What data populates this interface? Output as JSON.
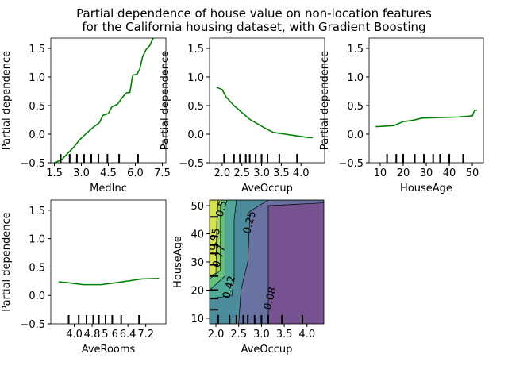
{
  "title_line1": "Partial dependence of house value on non-location features",
  "title_line2": "for the California housing dataset, with Gradient Boosting",
  "chart_data": [
    {
      "type": "line",
      "xlabel": "MedInc",
      "ylabel": "Partial dependence",
      "xlim": [
        1.3,
        7.7
      ],
      "ylim": [
        -0.5,
        1.68
      ],
      "xticks": [
        1.5,
        3.0,
        4.5,
        6.0,
        7.5
      ],
      "xtick_labels": [
        "1.5",
        "3.0",
        "4.5",
        "6.0",
        "7.5"
      ],
      "yticks": [
        -0.5,
        0.0,
        0.5,
        1.0,
        1.5
      ],
      "ytick_labels": [
        "−0.5",
        "0.0",
        "0.5",
        "1.0",
        "1.5"
      ],
      "deciles": [
        1.85,
        2.35,
        2.75,
        3.15,
        3.55,
        3.95,
        4.45,
        5.1,
        6.15
      ],
      "color": "#008000",
      "x": [
        1.5,
        1.9,
        2.2,
        2.6,
        2.9,
        3.3,
        3.7,
        4.0,
        4.2,
        4.5,
        4.7,
        5.0,
        5.3,
        5.5,
        5.7,
        5.85,
        6.1,
        6.25,
        6.4,
        6.6,
        6.8,
        7.0
      ],
      "y": [
        -0.5,
        -0.45,
        -0.35,
        -0.22,
        -0.1,
        0.02,
        0.13,
        0.2,
        0.33,
        0.36,
        0.48,
        0.52,
        0.65,
        0.72,
        0.73,
        1.03,
        1.05,
        1.14,
        1.35,
        1.48,
        1.55,
        1.68
      ]
    },
    {
      "type": "line",
      "xlabel": "AveOccup",
      "ylabel": "Partial dependence",
      "xlim": [
        1.68,
        4.6
      ],
      "ylim": [
        -0.5,
        1.68
      ],
      "xticks": [
        2.0,
        2.5,
        3.0,
        3.5,
        4.0
      ],
      "xtick_labels": [
        "2.0",
        "2.5",
        "3.0",
        "3.5",
        "4.0"
      ],
      "yticks": [
        -0.5,
        0.0,
        0.5,
        1.0,
        1.5
      ],
      "ytick_labels": [
        "−0.5",
        "0.0",
        "0.5",
        "1.0",
        "1.5"
      ],
      "deciles": [
        2.05,
        2.3,
        2.45,
        2.6,
        2.7,
        2.85,
        3.0,
        3.15,
        3.45,
        3.9
      ],
      "color": "#008000",
      "x": [
        1.86,
        2.0,
        2.1,
        2.3,
        2.5,
        2.7,
        2.9,
        3.1,
        3.3,
        3.6,
        3.9,
        4.2,
        4.3
      ],
      "y": [
        0.82,
        0.78,
        0.65,
        0.5,
        0.38,
        0.26,
        0.18,
        0.1,
        0.03,
        0.0,
        -0.03,
        -0.06,
        -0.06
      ]
    },
    {
      "type": "line",
      "xlabel": "HouseAge",
      "ylabel": "Partial dependence",
      "xlim": [
        5.2,
        54.8
      ],
      "ylim": [
        -0.5,
        1.68
      ],
      "xticks": [
        10,
        20,
        30,
        40,
        50
      ],
      "xtick_labels": [
        "10",
        "20",
        "30",
        "40",
        "50"
      ],
      "yticks": [
        -0.5,
        0.0,
        0.5,
        1.0,
        1.5
      ],
      "ytick_labels": [
        "−0.5",
        "0.0",
        "0.5",
        "1.0",
        "1.5"
      ],
      "deciles": [
        13,
        17,
        20,
        25,
        29,
        33,
        36,
        40,
        46
      ],
      "color": "#008000",
      "x": [
        8,
        12,
        16,
        20,
        24,
        28,
        36,
        44,
        50,
        51,
        52
      ],
      "y": [
        0.13,
        0.14,
        0.15,
        0.22,
        0.24,
        0.28,
        0.29,
        0.3,
        0.32,
        0.42,
        0.42
      ]
    },
    {
      "type": "line",
      "xlabel": "AveRooms",
      "ylabel": "Partial dependence",
      "xlim": [
        2.95,
        8.1
      ],
      "ylim": [
        -0.5,
        1.68
      ],
      "xticks": [
        4.0,
        4.8,
        5.6,
        6.4,
        7.2
      ],
      "xtick_labels": [
        "4.0",
        "4.8",
        "5.6",
        "6.4",
        "7.2"
      ],
      "yticks": [
        -0.5,
        0.0,
        0.5,
        1.0,
        1.5
      ],
      "ytick_labels": [
        "−0.5",
        "0.0",
        "0.5",
        "1.0",
        "1.5"
      ],
      "deciles": [
        3.75,
        4.2,
        4.55,
        4.85,
        5.1,
        5.4,
        5.7,
        6.1,
        6.9
      ],
      "color": "#008000",
      "x": [
        3.3,
        3.8,
        4.4,
        5.2,
        5.8,
        6.5,
        7.0,
        7.8
      ],
      "y": [
        0.24,
        0.22,
        0.19,
        0.19,
        0.22,
        0.26,
        0.29,
        0.3
      ]
    },
    {
      "type": "heatmap",
      "xlabel": "AveOccup",
      "ylabel": "HouseAge",
      "xlim": [
        1.86,
        4.37
      ],
      "ylim": [
        8,
        52
      ],
      "xticks": [
        2.0,
        2.5,
        3.0,
        3.5,
        4.0
      ],
      "xtick_labels": [
        "2.0",
        "2.5",
        "3.0",
        "3.5",
        "4.0"
      ],
      "yticks": [
        10,
        20,
        30,
        40,
        50
      ],
      "ytick_labels": [
        "10",
        "20",
        "30",
        "40",
        "50"
      ],
      "xdeciles": [
        2.05,
        2.3,
        2.45,
        2.6,
        2.7,
        2.85,
        3.0,
        3.15,
        3.45,
        3.9
      ],
      "ydeciles": [
        13,
        17,
        20,
        25,
        29,
        33,
        36,
        39,
        46
      ],
      "base_color": "#765290",
      "levels": [
        {
          "label": "0.08",
          "color": "#6a72a2",
          "poly": [
            [
              1.86,
              8
            ],
            [
              3.15,
              8
            ],
            [
              3.15,
              50
            ],
            [
              4.37,
              51
            ],
            [
              4.37,
              52
            ],
            [
              1.86,
              52
            ]
          ],
          "label_at": [
            3.2,
            17
          ]
        },
        {
          "label": "0.25",
          "color": "#4d8c9c",
          "poly": [
            [
              1.86,
              8
            ],
            [
              2.5,
              8
            ],
            [
              2.55,
              20
            ],
            [
              2.7,
              30
            ],
            [
              2.75,
              48
            ],
            [
              3.15,
              52
            ],
            [
              1.86,
              52
            ]
          ],
          "label_at": [
            2.75,
            44
          ]
        },
        {
          "label": "0.42",
          "color": "#4fa897",
          "poly": [
            [
              1.86,
              17
            ],
            [
              2.35,
              18
            ],
            [
              2.4,
              25
            ],
            [
              2.4,
              45
            ],
            [
              2.45,
              52
            ],
            [
              1.86,
              52
            ]
          ],
          "label_at": [
            2.3,
            21
          ]
        },
        {
          "label": "0.59",
          "color": "#62c27c",
          "poly": [
            [
              1.86,
              20
            ],
            [
              2.2,
              25
            ],
            [
              2.2,
              50
            ],
            [
              2.25,
              52
            ],
            [
              1.86,
              52
            ]
          ],
          "label_at": [
            2.15,
            50
          ]
        },
        {
          "label": "0.77",
          "color": "#a4d65a",
          "poly": [
            [
              1.86,
              24
            ],
            [
              2.1,
              27
            ],
            [
              2.1,
              50
            ],
            [
              2.12,
              52
            ],
            [
              1.86,
              52
            ]
          ],
          "label_at": [
            2.08,
            32
          ]
        },
        {
          "label": "0.95",
          "color": "#d7e24f",
          "poly": [
            [
              1.86,
              25
            ],
            [
              2.0,
              26
            ],
            [
              2.02,
              45
            ],
            [
              2.05,
              52
            ],
            [
              1.86,
              52
            ]
          ],
          "label_at": [
            1.97,
            38
          ]
        }
      ]
    }
  ]
}
